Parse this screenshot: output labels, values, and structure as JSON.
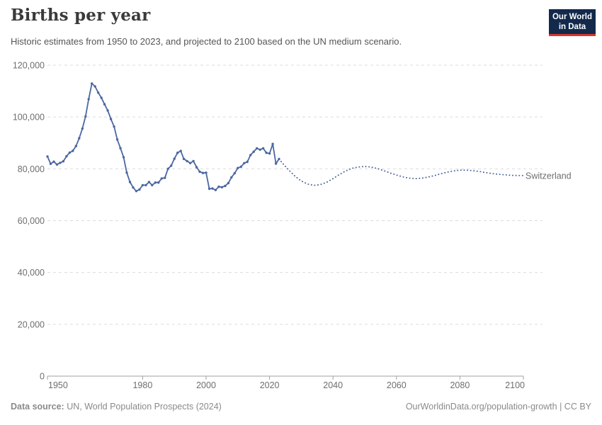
{
  "header": {
    "title": "Births per year",
    "subtitle": "Historic estimates from 1950 to 2023, and projected to 2100 based on the UN medium scenario.",
    "logo": {
      "line1": "Our World",
      "line2": "in Data",
      "bg_color": "#12294b",
      "accent_color": "#d5362c"
    }
  },
  "chart_data": {
    "type": "line",
    "title": "Births per year",
    "entity_label": "Switzerland",
    "line_color": "#4b67a1",
    "grid": "dashed horizontal",
    "legend_position": "end-of-line",
    "xlim": [
      1950,
      2100
    ],
    "ylim": [
      0,
      120000
    ],
    "xticks": [
      1950,
      1980,
      2000,
      2020,
      2040,
      2060,
      2080,
      2100
    ],
    "yticks": [
      0,
      20000,
      40000,
      60000,
      80000,
      100000,
      120000
    ],
    "ytick_labels": [
      "0",
      "20,000",
      "40,000",
      "60,000",
      "80,000",
      "100,000",
      "120,000"
    ],
    "series": [
      {
        "name": "Switzerland (historic estimates, 1950-2023)",
        "style": "solid-with-markers",
        "x": [
          1950,
          1951,
          1952,
          1953,
          1954,
          1955,
          1956,
          1957,
          1958,
          1959,
          1960,
          1961,
          1962,
          1963,
          1964,
          1965,
          1966,
          1967,
          1968,
          1969,
          1970,
          1971,
          1972,
          1973,
          1974,
          1975,
          1976,
          1977,
          1978,
          1979,
          1980,
          1981,
          1982,
          1983,
          1984,
          1985,
          1986,
          1987,
          1988,
          1989,
          1990,
          1991,
          1992,
          1993,
          1994,
          1995,
          1996,
          1997,
          1998,
          1999,
          2000,
          2001,
          2002,
          2003,
          2004,
          2005,
          2006,
          2007,
          2008,
          2009,
          2010,
          2011,
          2012,
          2013,
          2014,
          2015,
          2016,
          2017,
          2018,
          2019,
          2020,
          2021,
          2022,
          2023
        ],
        "values": [
          84764,
          81927,
          82769,
          81637,
          82297,
          82913,
          84846,
          86271,
          86924,
          88785,
          91800,
          95500,
          100200,
          106900,
          112900,
          111800,
          109400,
          107400,
          104900,
          102500,
          99200,
          96300,
          91300,
          88000,
          84500,
          78500,
          74900,
          72800,
          71400,
          72000,
          73700,
          73700,
          74900,
          73700,
          74700,
          74700,
          76300,
          76500,
          80000,
          81200,
          83900,
          86200,
          86900,
          83800,
          83000,
          82200,
          83000,
          80600,
          78900,
          78400,
          78500,
          72300,
          72400,
          71800,
          73100,
          72900,
          73400,
          74500,
          76700,
          78300,
          80300,
          80800,
          82200,
          82700,
          85300,
          86600,
          87900,
          87400,
          87900,
          86200,
          85900,
          89600,
          82000,
          83800
        ]
      },
      {
        "name": "Switzerland (UN medium projection, 2024-2100)",
        "style": "dotted",
        "x": [
          2023,
          2024,
          2026,
          2028,
          2030,
          2032,
          2034,
          2036,
          2038,
          2040,
          2042,
          2044,
          2046,
          2048,
          2050,
          2052,
          2054,
          2056,
          2058,
          2060,
          2062,
          2064,
          2066,
          2068,
          2070,
          2072,
          2074,
          2076,
          2078,
          2080,
          2082,
          2084,
          2086,
          2088,
          2090,
          2092,
          2094,
          2096,
          2098,
          2100
        ],
        "values": [
          83800,
          82300,
          79600,
          77200,
          75300,
          74100,
          73600,
          73900,
          74800,
          76200,
          77800,
          79200,
          80200,
          80700,
          80900,
          80700,
          80100,
          79300,
          78400,
          77600,
          76900,
          76400,
          76200,
          76400,
          76800,
          77400,
          78100,
          78700,
          79200,
          79500,
          79500,
          79300,
          79000,
          78600,
          78200,
          77900,
          77700,
          77500,
          77400,
          77400
        ]
      }
    ]
  },
  "footer": {
    "source_label": "Data source:",
    "source_text": " UN, World Population Prospects (2024)",
    "credit": "OurWorldinData.org/population-growth | CC BY"
  }
}
